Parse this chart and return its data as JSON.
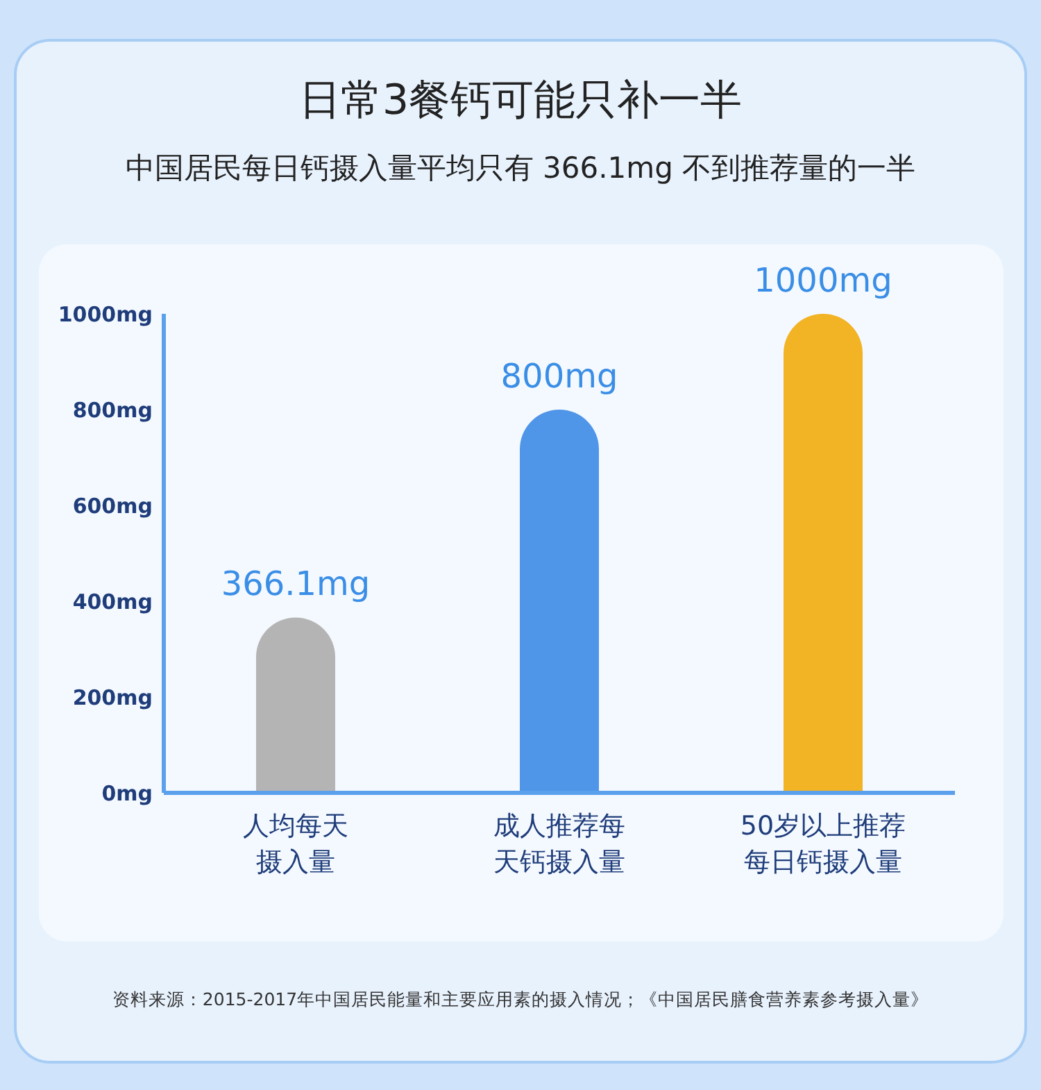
{
  "chart_data": {
    "type": "bar",
    "title": "日常3餐钙可能只补一半",
    "subtitle": "中国居民每日钙摄入量平均只有 366.1mg 不到推荐量的一半",
    "categories": [
      "人均每天摄入量",
      "成人推荐每天钙摄入量",
      "50岁以上推荐每日钙摄入量"
    ],
    "values": [
      366.1,
      800,
      1000
    ],
    "colors": [
      "#b4b4b4",
      "#4f95e8",
      "#f2b324"
    ],
    "value_labels": [
      "366.1mg",
      "800mg",
      "1000mg"
    ],
    "ylim": [
      0,
      1000
    ],
    "yticks": [
      {
        "value": 0,
        "label": "0mg"
      },
      {
        "value": 200,
        "label": "200mg"
      },
      {
        "value": 400,
        "label": "400mg"
      },
      {
        "value": 600,
        "label": "600mg"
      },
      {
        "value": 800,
        "label": "800mg"
      },
      {
        "value": 1000,
        "label": "1000mg"
      }
    ],
    "grid": false,
    "annotations": [
      "资料来源：2015-2017年中国居民能量和主要应用素的摄入情况；《中国居民膳食营养素参考摄入量》"
    ]
  }
}
